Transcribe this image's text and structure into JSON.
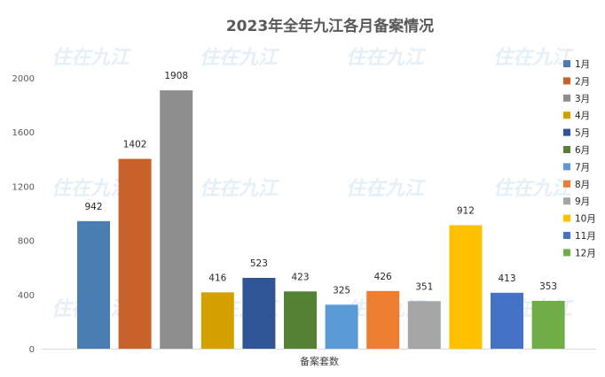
{
  "watermark": "住在九江",
  "chart_data": {
    "type": "bar",
    "title": "2023年全年九江各月备案情况",
    "xlabel": "备案套数",
    "ylabel": "",
    "ylim": [
      0,
      2000
    ],
    "yticks": [
      0,
      400,
      800,
      1200,
      1600,
      2000
    ],
    "grid": false,
    "legend_position": "right",
    "categories": [
      "1月",
      "2月",
      "3月",
      "4月",
      "5月",
      "6月",
      "7月",
      "8月",
      "9月",
      "10月",
      "11月",
      "12月"
    ],
    "values": [
      942,
      1402,
      1908,
      416,
      523,
      423,
      325,
      426,
      351,
      912,
      413,
      353
    ],
    "colors": [
      "#4a7eb3",
      "#c8622a",
      "#8e8e8e",
      "#d4a000",
      "#2f5597",
      "#548235",
      "#5b9bd5",
      "#ed7d31",
      "#a5a5a5",
      "#ffc000",
      "#4472c4",
      "#70ad47"
    ]
  }
}
